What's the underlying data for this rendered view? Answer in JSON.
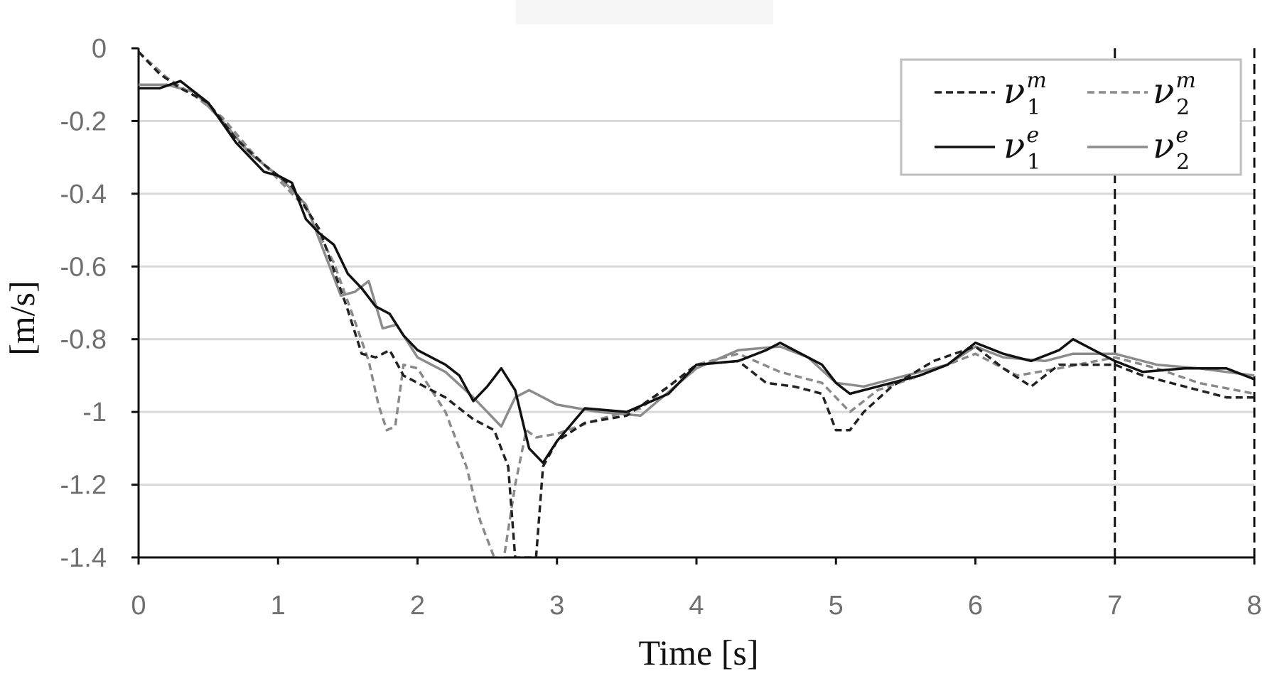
{
  "chart_data": {
    "type": "line",
    "xlabel": "Time [s]",
    "ylabel": "[m/s]",
    "xlim": [
      0,
      8
    ],
    "ylim": [
      -1.4,
      0
    ],
    "x_ticks": [
      "0",
      "1",
      "2",
      "3",
      "4",
      "5",
      "6",
      "7",
      "8"
    ],
    "y_ticks": [
      "0",
      "-0.2",
      "-0.4",
      "-0.6",
      "-0.8",
      "-1",
      "-1.2",
      "-1.4"
    ],
    "grid": "horizontal",
    "legend_position": "top-right",
    "vertical_markers": [
      7,
      8
    ],
    "series": [
      {
        "name": "ν1m",
        "base": "ν",
        "sub": "1",
        "sup": "m",
        "color": "#222222",
        "dash": "dashed",
        "x": [
          0,
          0.15,
          0.3,
          0.5,
          0.7,
          0.9,
          1.1,
          1.3,
          1.5,
          1.6,
          1.7,
          1.8,
          1.9,
          2.0,
          2.2,
          2.4,
          2.55,
          2.65,
          2.7,
          2.75,
          2.85,
          2.9,
          3.0,
          3.2,
          3.5,
          3.8,
          4.0,
          4.3,
          4.5,
          4.7,
          4.9,
          5.0,
          5.1,
          5.2,
          5.4,
          5.7,
          6.0,
          6.2,
          6.4,
          6.5,
          6.6,
          6.8,
          7.0,
          7.2,
          7.5,
          7.8,
          8.0
        ],
        "y": [
          -0.01,
          -0.07,
          -0.11,
          -0.15,
          -0.25,
          -0.32,
          -0.38,
          -0.5,
          -0.72,
          -0.84,
          -0.85,
          -0.83,
          -0.9,
          -0.92,
          -0.96,
          -1.02,
          -1.05,
          -1.15,
          -1.4,
          -1.4,
          -1.4,
          -1.15,
          -1.08,
          -1.03,
          -1.01,
          -0.93,
          -0.87,
          -0.86,
          -0.92,
          -0.93,
          -0.95,
          -1.05,
          -1.05,
          -1.0,
          -0.93,
          -0.86,
          -0.82,
          -0.88,
          -0.93,
          -0.9,
          -0.87,
          -0.87,
          -0.87,
          -0.9,
          -0.93,
          -0.96,
          -0.96
        ]
      },
      {
        "name": "ν2m",
        "base": "ν",
        "sub": "2",
        "sup": "m",
        "color": "#8a8a8a",
        "dash": "dashed",
        "x": [
          0,
          0.2,
          0.4,
          0.6,
          0.8,
          1.0,
          1.2,
          1.4,
          1.55,
          1.65,
          1.72,
          1.78,
          1.84,
          1.9,
          2.0,
          2.2,
          2.35,
          2.45,
          2.55,
          2.62,
          2.7,
          2.78,
          2.85,
          3.0,
          3.3,
          3.6,
          4.0,
          4.3,
          4.6,
          4.9,
          5.1,
          5.3,
          5.6,
          6.0,
          6.3,
          6.6,
          7.0,
          7.3,
          7.6,
          8.0
        ],
        "y": [
          -0.01,
          -0.08,
          -0.13,
          -0.19,
          -0.28,
          -0.36,
          -0.44,
          -0.59,
          -0.75,
          -0.86,
          -0.98,
          -1.05,
          -1.04,
          -0.87,
          -0.88,
          -1.0,
          -1.15,
          -1.3,
          -1.4,
          -1.4,
          -1.2,
          -1.05,
          -1.07,
          -1.06,
          -1.02,
          -0.99,
          -0.87,
          -0.84,
          -0.89,
          -0.92,
          -1.0,
          -0.94,
          -0.9,
          -0.84,
          -0.9,
          -0.88,
          -0.85,
          -0.88,
          -0.92,
          -0.95
        ]
      },
      {
        "name": "ν1e",
        "base": "ν",
        "sub": "1",
        "sup": "e",
        "color": "#111111",
        "dash": "solid",
        "x": [
          0,
          0.15,
          0.3,
          0.5,
          0.7,
          0.9,
          1.0,
          1.1,
          1.2,
          1.3,
          1.4,
          1.5,
          1.6,
          1.7,
          1.8,
          1.9,
          2.0,
          2.2,
          2.3,
          2.4,
          2.5,
          2.6,
          2.7,
          2.8,
          2.9,
          3.0,
          3.2,
          3.5,
          3.8,
          4.0,
          4.3,
          4.5,
          4.6,
          4.7,
          4.9,
          5.0,
          5.1,
          5.3,
          5.6,
          5.8,
          6.0,
          6.2,
          6.4,
          6.6,
          6.7,
          6.8,
          7.0,
          7.2,
          7.5,
          7.8,
          8.0
        ],
        "y": [
          -0.11,
          -0.11,
          -0.09,
          -0.15,
          -0.26,
          -0.34,
          -0.35,
          -0.37,
          -0.47,
          -0.51,
          -0.54,
          -0.62,
          -0.66,
          -0.71,
          -0.73,
          -0.79,
          -0.83,
          -0.87,
          -0.9,
          -0.97,
          -0.93,
          -0.88,
          -0.94,
          -1.1,
          -1.14,
          -1.08,
          -0.99,
          -1.0,
          -0.95,
          -0.87,
          -0.86,
          -0.83,
          -0.81,
          -0.83,
          -0.87,
          -0.92,
          -0.95,
          -0.93,
          -0.9,
          -0.87,
          -0.81,
          -0.84,
          -0.86,
          -0.83,
          -0.8,
          -0.82,
          -0.86,
          -0.89,
          -0.88,
          -0.88,
          -0.91
        ]
      },
      {
        "name": "ν2e",
        "base": "ν",
        "sub": "2",
        "sup": "e",
        "color": "#8c8c8c",
        "dash": "solid",
        "x": [
          0,
          0.2,
          0.4,
          0.6,
          0.8,
          1.0,
          1.2,
          1.35,
          1.45,
          1.55,
          1.65,
          1.75,
          1.85,
          2.0,
          2.2,
          2.4,
          2.5,
          2.6,
          2.7,
          2.8,
          3.0,
          3.3,
          3.6,
          4.0,
          4.3,
          4.6,
          4.8,
          5.0,
          5.2,
          5.5,
          5.8,
          6.0,
          6.2,
          6.5,
          6.7,
          7.0,
          7.3,
          7.6,
          8.0
        ],
        "y": [
          -0.1,
          -0.1,
          -0.12,
          -0.2,
          -0.29,
          -0.35,
          -0.43,
          -0.58,
          -0.68,
          -0.67,
          -0.64,
          -0.77,
          -0.76,
          -0.85,
          -0.89,
          -0.96,
          -1.0,
          -1.04,
          -0.96,
          -0.94,
          -0.98,
          -1.0,
          -1.01,
          -0.88,
          -0.83,
          -0.82,
          -0.85,
          -0.92,
          -0.93,
          -0.9,
          -0.87,
          -0.82,
          -0.85,
          -0.86,
          -0.84,
          -0.84,
          -0.87,
          -0.88,
          -0.9
        ]
      }
    ]
  }
}
